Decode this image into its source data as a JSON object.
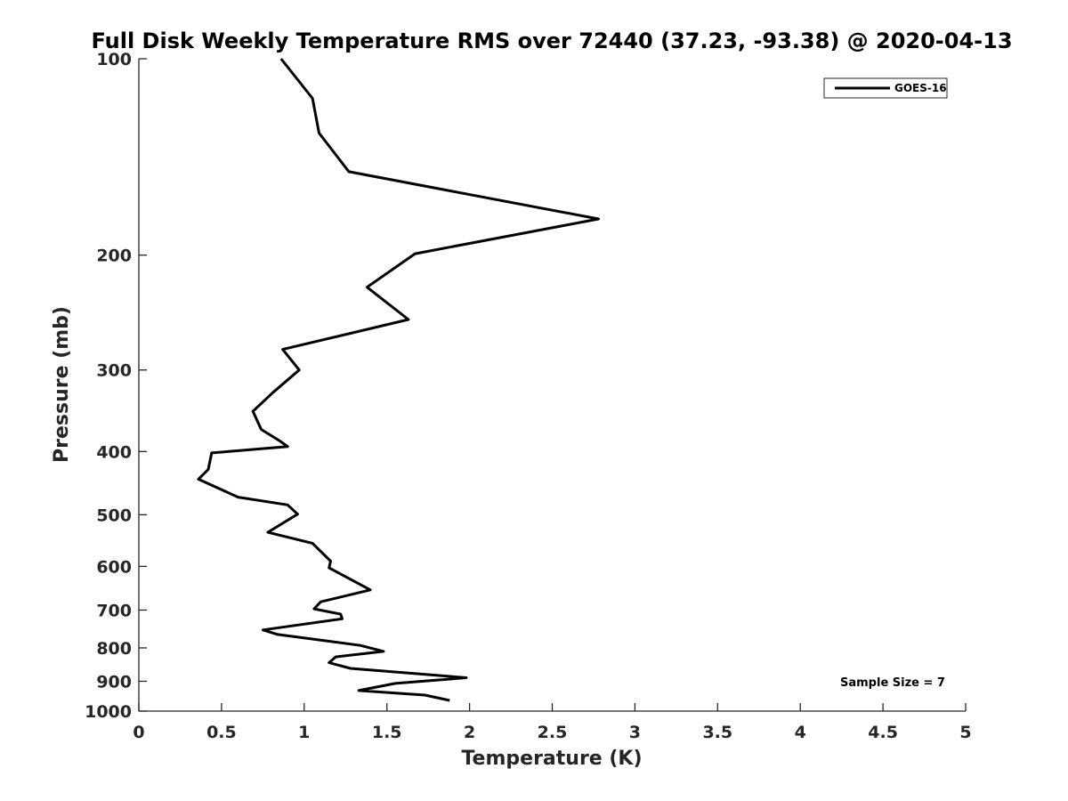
{
  "chart_data": {
    "type": "line",
    "title": "Full Disk Weekly Temperature RMS over 72440 (37.23, -93.38) @ 2020-04-13",
    "xlabel": "Temperature (K)",
    "ylabel": "Pressure (mb)",
    "xlim": [
      0,
      5
    ],
    "ylim": [
      100,
      1000
    ],
    "yscale": "log",
    "y_reversed": true,
    "grid": false,
    "legend_position": "top-right",
    "x_ticks": [
      "0",
      "0.5",
      "1",
      "1.5",
      "2",
      "2.5",
      "3",
      "3.5",
      "4",
      "4.5",
      "5"
    ],
    "y_ticks": [
      "100",
      "200",
      "300",
      "400",
      "500",
      "600",
      "700",
      "800",
      "900",
      "1000"
    ],
    "annotation": "Sample Size = 7",
    "series": [
      {
        "name": "GOES-16",
        "color": "#000000",
        "x": [
          0.86,
          1.05,
          1.09,
          1.27,
          2.78,
          1.67,
          1.38,
          1.63,
          0.87,
          0.97,
          0.81,
          0.69,
          0.74,
          0.85,
          0.9,
          0.44,
          0.42,
          0.36,
          0.6,
          0.9,
          0.96,
          0.78,
          1.05,
          1.16,
          1.15,
          1.4,
          1.1,
          1.06,
          1.22,
          1.23,
          0.75,
          0.84,
          1.34,
          1.48,
          1.19,
          1.15,
          1.28,
          1.98,
          1.55,
          1.33,
          1.73,
          1.88
        ],
        "y": [
          100,
          115,
          130,
          149,
          176,
          199,
          224,
          251,
          279,
          300,
          325,
          347,
          370,
          385,
          393,
          402,
          426,
          441,
          470,
          483,
          499,
          532,
          553,
          589,
          603,
          652,
          680,
          697,
          710,
          722,
          751,
          763,
          793,
          810,
          826,
          843,
          860,
          889,
          907,
          930,
          945,
          963
        ]
      }
    ]
  }
}
